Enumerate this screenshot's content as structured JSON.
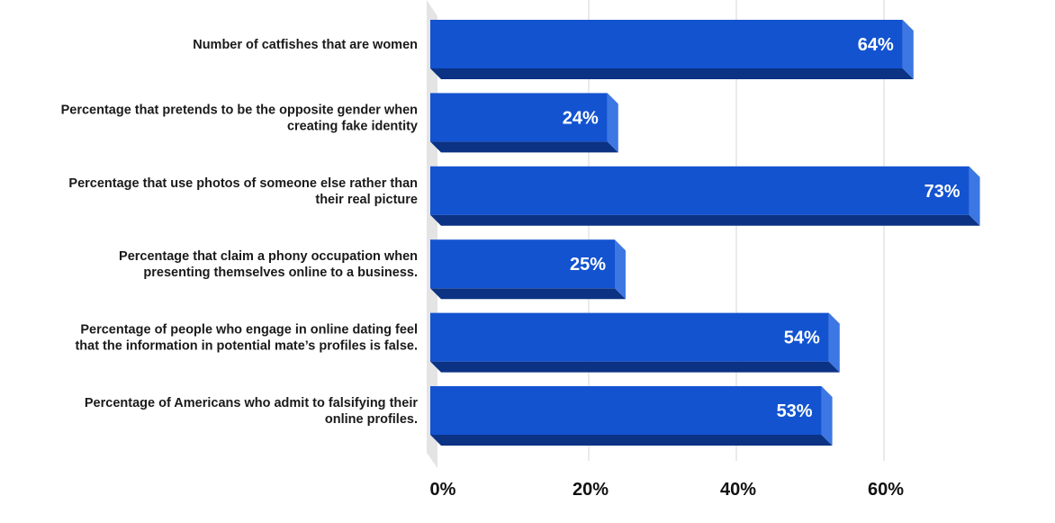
{
  "chart_data": {
    "type": "bar",
    "orientation": "horizontal",
    "categories": [
      [
        "Number of catfishes that are women"
      ],
      [
        "Percentage that pretends to be the opposite gender when",
        "creating fake identity"
      ],
      [
        "Percentage that use photos of someone else rather than",
        "their real picture"
      ],
      [
        "Percentage that claim a phony occupation when",
        "presenting themselves online to a business."
      ],
      [
        "Percentage of people who engage in online dating feel",
        "that the information in potential mate’s profiles is false."
      ],
      [
        "Percentage of Americans who admit to falsifying their",
        "online profiles."
      ]
    ],
    "values": [
      64,
      24,
      73,
      25,
      54,
      53
    ],
    "data_labels": [
      "64%",
      "24%",
      "73%",
      "25%",
      "54%",
      "53%"
    ],
    "xticks": [
      "0%",
      "20%",
      "40%",
      "60%"
    ],
    "xtick_values": [
      0,
      20,
      40,
      60
    ],
    "xlim": [
      0,
      80
    ],
    "grid": true,
    "style": "3d",
    "colors": {
      "bar_front": "#1353d0",
      "bar_top": "#3d77e3",
      "bar_bottom": "#0b3283",
      "wall": "#e4e4e4",
      "grid": "#d6d6d6"
    }
  }
}
